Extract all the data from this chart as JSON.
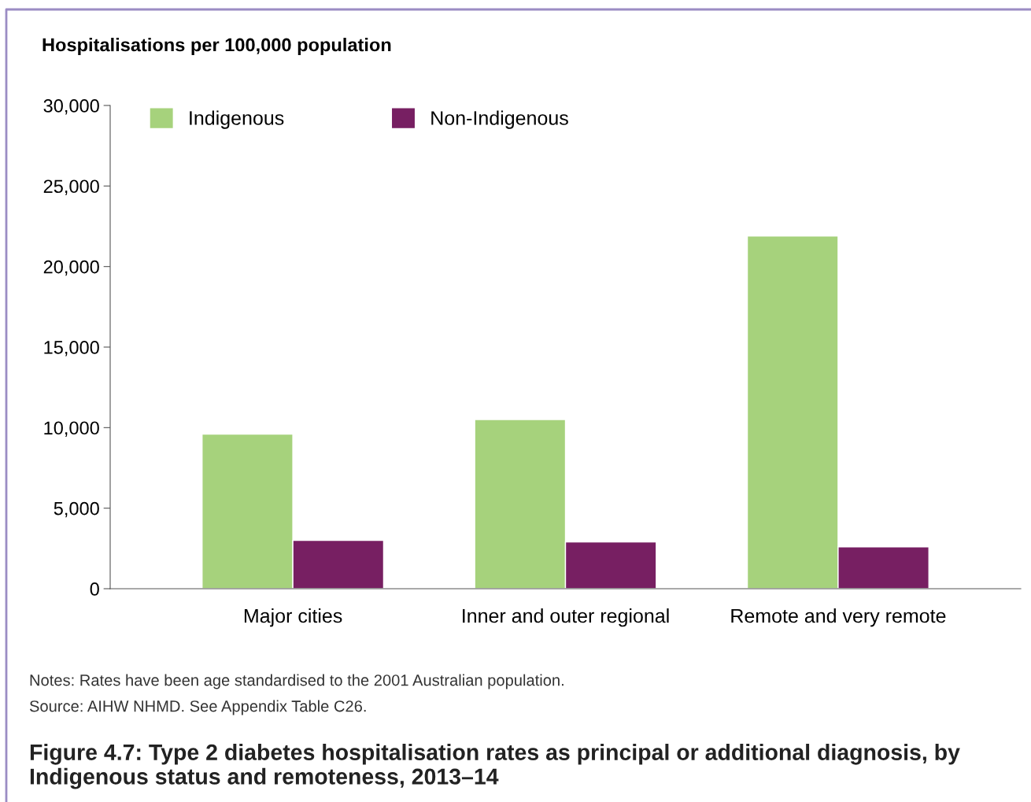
{
  "chart_data": {
    "type": "bar",
    "title": "Figure 4.7: Type 2 diabetes hospitalisation rates as principal or additional diagnosis, by Indigenous status and remoteness, 2013–14",
    "ylabel": "Hospitalisations per 100,000 population",
    "categories": [
      "Major cities",
      "Inner and outer regional",
      "Remote and very remote"
    ],
    "series": [
      {
        "name": "Indigenous",
        "color": "#a6d27c",
        "values": [
          9600,
          10500,
          21900
        ]
      },
      {
        "name": "Non-Indigenous",
        "color": "#771f62",
        "values": [
          3000,
          2900,
          2600
        ]
      }
    ],
    "ylim": [
      0,
      30000
    ],
    "yticks": [
      {
        "value": 0,
        "label": "0"
      },
      {
        "value": 5000,
        "label": "5,000"
      },
      {
        "value": 10000,
        "label": "10,000"
      },
      {
        "value": 15000,
        "label": "15,000"
      },
      {
        "value": 20000,
        "label": "20,000"
      },
      {
        "value": 25000,
        "label": "25,000"
      },
      {
        "value": 30000,
        "label": "30,000"
      }
    ],
    "grid": false,
    "legend": "top left",
    "annotations": [
      "Notes: Rates have been age standardised to the 2001 Australian population.",
      "Source: AIHW NHMD. See Appendix Table C26."
    ]
  }
}
